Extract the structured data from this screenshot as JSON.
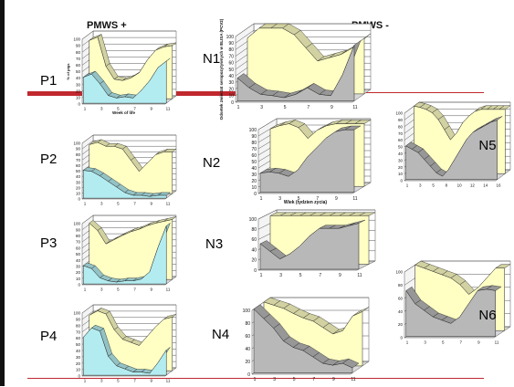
{
  "headers": {
    "positive": "PMWS +",
    "negative": "PMWS -"
  },
  "colors": {
    "yellow": "#ffffc4",
    "blue": "#b3ecf0",
    "gray": "#b8b8b8",
    "grid": "#555555",
    "wall": "#ffffff",
    "accent_red": "#c0282e"
  },
  "chart_data": [
    {
      "id": "P1",
      "label": "P1",
      "type": "area",
      "x": [
        1,
        2,
        3,
        4,
        5,
        6,
        7,
        8,
        9,
        10,
        11
      ],
      "xticks": [
        "1",
        "3",
        "5",
        "7",
        "9",
        "11"
      ],
      "xlabel": "Week of life",
      "ylabel": "% of pigs",
      "yticks": [
        "0",
        "10",
        "20",
        "30",
        "40",
        "50",
        "60",
        "70",
        "80",
        "90",
        "100"
      ],
      "ylim": [
        0,
        100
      ],
      "series": [
        {
          "color": "blue",
          "values": [
            40,
            45,
            30,
            12,
            8,
            10,
            8,
            20,
            35,
            55,
            65
          ]
        },
        {
          "color": "yellow",
          "values": [
            90,
            95,
            50,
            30,
            28,
            32,
            40,
            60,
            75,
            80,
            82
          ]
        }
      ]
    },
    {
      "id": "P2",
      "label": "P2",
      "type": "area",
      "x": [
        1,
        2,
        3,
        4,
        5,
        6,
        7,
        8,
        9,
        10,
        11
      ],
      "xticks": [
        "1",
        "3",
        "5",
        "7",
        "9",
        "11"
      ],
      "xlabel": "",
      "ylabel": "",
      "yticks": [
        "0",
        "10",
        "20",
        "30",
        "40",
        "50",
        "60",
        "70",
        "80",
        "90",
        "100"
      ],
      "ylim": [
        0,
        100
      ],
      "series": [
        {
          "color": "blue",
          "values": [
            50,
            48,
            40,
            30,
            20,
            10,
            5,
            5,
            3,
            5,
            5
          ]
        },
        {
          "color": "yellow",
          "values": [
            88,
            92,
            85,
            85,
            80,
            60,
            40,
            55,
            70,
            75,
            75
          ]
        }
      ]
    },
    {
      "id": "P3",
      "label": "P3",
      "type": "area",
      "x": [
        1,
        2,
        3,
        4,
        5,
        6,
        7,
        8,
        9,
        10,
        11
      ],
      "xticks": [
        "1",
        "3",
        "5",
        "7",
        "9",
        "11"
      ],
      "xlabel": "",
      "ylabel": "",
      "yticks": [
        "0",
        "10",
        "20",
        "30",
        "40",
        "50",
        "60",
        "70",
        "80",
        "90",
        "100"
      ],
      "ylim": [
        0,
        100
      ],
      "series": [
        {
          "color": "blue",
          "values": [
            30,
            25,
            10,
            5,
            3,
            5,
            5,
            8,
            20,
            60,
            95
          ]
        },
        {
          "color": "yellow",
          "values": [
            92,
            80,
            58,
            65,
            72,
            78,
            82,
            88,
            92,
            95,
            98
          ]
        }
      ]
    },
    {
      "id": "P4",
      "label": "P4",
      "type": "area",
      "x": [
        1,
        2,
        3,
        4,
        5,
        6,
        7,
        8,
        9,
        10,
        11
      ],
      "xticks": [
        "1",
        "3",
        "5",
        "7",
        "9",
        "11"
      ],
      "xlabel": "",
      "ylabel": "",
      "yticks": [
        "0",
        "10",
        "20",
        "30",
        "40",
        "50",
        "60",
        "70",
        "80",
        "90",
        "100"
      ],
      "ylim": [
        0,
        100
      ],
      "series": [
        {
          "color": "blue",
          "values": [
            60,
            75,
            70,
            30,
            15,
            10,
            5,
            5,
            3,
            20,
            40
          ]
        },
        {
          "color": "yellow",
          "values": [
            88,
            95,
            90,
            65,
            50,
            45,
            40,
            55,
            70,
            82,
            85
          ]
        }
      ]
    },
    {
      "id": "N1",
      "label": "N1",
      "type": "area",
      "x": [
        1,
        2,
        3,
        4,
        5,
        6,
        7,
        8,
        9,
        10,
        11
      ],
      "xticks": [
        "1",
        "3",
        "5",
        "7",
        "9",
        "11"
      ],
      "xlabel": "",
      "ylabel": "Odsetek zwierzat seropozytywnych w ELISA (PCV2)",
      "yticks": [
        "0",
        "10",
        "20",
        "30",
        "40",
        "50",
        "60",
        "70",
        "80",
        "90",
        "100"
      ],
      "ylim": [
        0,
        100
      ],
      "series": [
        {
          "color": "gray",
          "values": [
            35,
            20,
            10,
            8,
            5,
            10,
            20,
            10,
            8,
            40,
            85
          ]
        },
        {
          "color": "yellow",
          "values": [
            85,
            100,
            100,
            100,
            90,
            70,
            50,
            55,
            60,
            70,
            85
          ]
        }
      ]
    },
    {
      "id": "N2",
      "label": "N2",
      "type": "area",
      "x": [
        1,
        2,
        3,
        4,
        5,
        6,
        7,
        8,
        9,
        10,
        11
      ],
      "xticks": [
        "1",
        "3",
        "5",
        "7",
        "9",
        "11"
      ],
      "xlabel": "Wiek (tydzien zycia)",
      "ylabel": "",
      "yticks": [
        "0",
        "10",
        "20",
        "30",
        "40",
        "50",
        "60",
        "70",
        "80",
        "90",
        "100"
      ],
      "ylim": [
        0,
        100
      ],
      "series": [
        {
          "color": "gray",
          "values": [
            30,
            32,
            30,
            25,
            35,
            55,
            70,
            85,
            95,
            98,
            98
          ]
        },
        {
          "color": "yellow",
          "values": [
            90,
            95,
            98,
            92,
            75,
            88,
            95,
            98,
            98,
            98,
            98
          ]
        }
      ]
    },
    {
      "id": "N3",
      "label": "N3",
      "type": "area",
      "x": [
        1,
        2,
        3,
        4,
        5,
        6,
        7,
        8,
        9,
        10,
        11
      ],
      "xticks": [
        "1",
        "3",
        "5",
        "7",
        "9",
        "11"
      ],
      "xlabel": "",
      "ylabel": "",
      "yticks": [
        "0",
        "20",
        "40",
        "60",
        "80",
        "100"
      ],
      "ylim": [
        0,
        100
      ],
      "series": [
        {
          "color": "gray",
          "values": [
            50,
            35,
            20,
            30,
            45,
            65,
            80,
            80,
            80,
            85,
            90
          ]
        },
        {
          "color": "yellow",
          "values": [
            95,
            95,
            95,
            95,
            95,
            95,
            95,
            95,
            95,
            95,
            95
          ]
        }
      ]
    },
    {
      "id": "N4",
      "label": "N4",
      "type": "area",
      "x": [
        1,
        2,
        3,
        4,
        5,
        6,
        7,
        8,
        9,
        10,
        11
      ],
      "xticks": [
        "1",
        "3",
        "5",
        "7",
        "9",
        "11"
      ],
      "xlabel": "",
      "ylabel": "",
      "yticks": [
        "0",
        "20",
        "40",
        "60",
        "80",
        "100"
      ],
      "ylim": [
        0,
        100
      ],
      "series": [
        {
          "color": "gray",
          "values": [
            100,
            85,
            70,
            50,
            40,
            35,
            25,
            15,
            12,
            15,
            8
          ]
        },
        {
          "color": "yellow",
          "values": [
            100,
            95,
            90,
            82,
            75,
            70,
            60,
            50,
            55,
            78,
            85
          ]
        }
      ]
    },
    {
      "id": "N5",
      "label": "N5",
      "type": "area",
      "x": [
        1,
        2,
        3,
        4,
        5,
        6,
        7,
        8,
        9,
        10,
        11,
        12,
        13,
        14,
        15,
        16
      ],
      "xticks": [
        "1",
        "3",
        "5",
        "8",
        "10",
        "12",
        "14",
        "16"
      ],
      "xlabel": "",
      "ylabel": "",
      "yticks": [
        "0",
        "10",
        "20",
        "30",
        "40",
        "50",
        "60",
        "70",
        "80",
        "90",
        "100"
      ],
      "ylim": [
        0,
        100
      ],
      "series": [
        {
          "color": "gray",
          "values": [
            50,
            45,
            40,
            30,
            20,
            10,
            5,
            15,
            30,
            45,
            60,
            70,
            75,
            80,
            85,
            88
          ]
        },
        {
          "color": "yellow",
          "values": [
            100,
            98,
            95,
            90,
            80,
            65,
            50,
            60,
            75,
            85,
            92,
            95,
            95,
            95,
            95,
            95
          ]
        }
      ]
    },
    {
      "id": "N6",
      "label": "N6",
      "type": "area",
      "x": [
        1,
        2,
        3,
        4,
        5,
        6,
        7,
        8,
        9,
        10,
        11
      ],
      "xticks": [
        "1",
        "3",
        "5",
        "7",
        "9",
        "11"
      ],
      "xlabel": "",
      "ylabel": "",
      "yticks": [
        "0",
        "20",
        "40",
        "60",
        "80",
        "100"
      ],
      "ylim": [
        0,
        100
      ],
      "series": [
        {
          "color": "gray",
          "values": [
            70,
            50,
            40,
            30,
            25,
            20,
            30,
            50,
            70,
            72,
            70
          ]
        },
        {
          "color": "yellow",
          "values": [
            100,
            95,
            90,
            85,
            80,
            70,
            55,
            65,
            80,
            95,
            95
          ]
        }
      ]
    }
  ]
}
